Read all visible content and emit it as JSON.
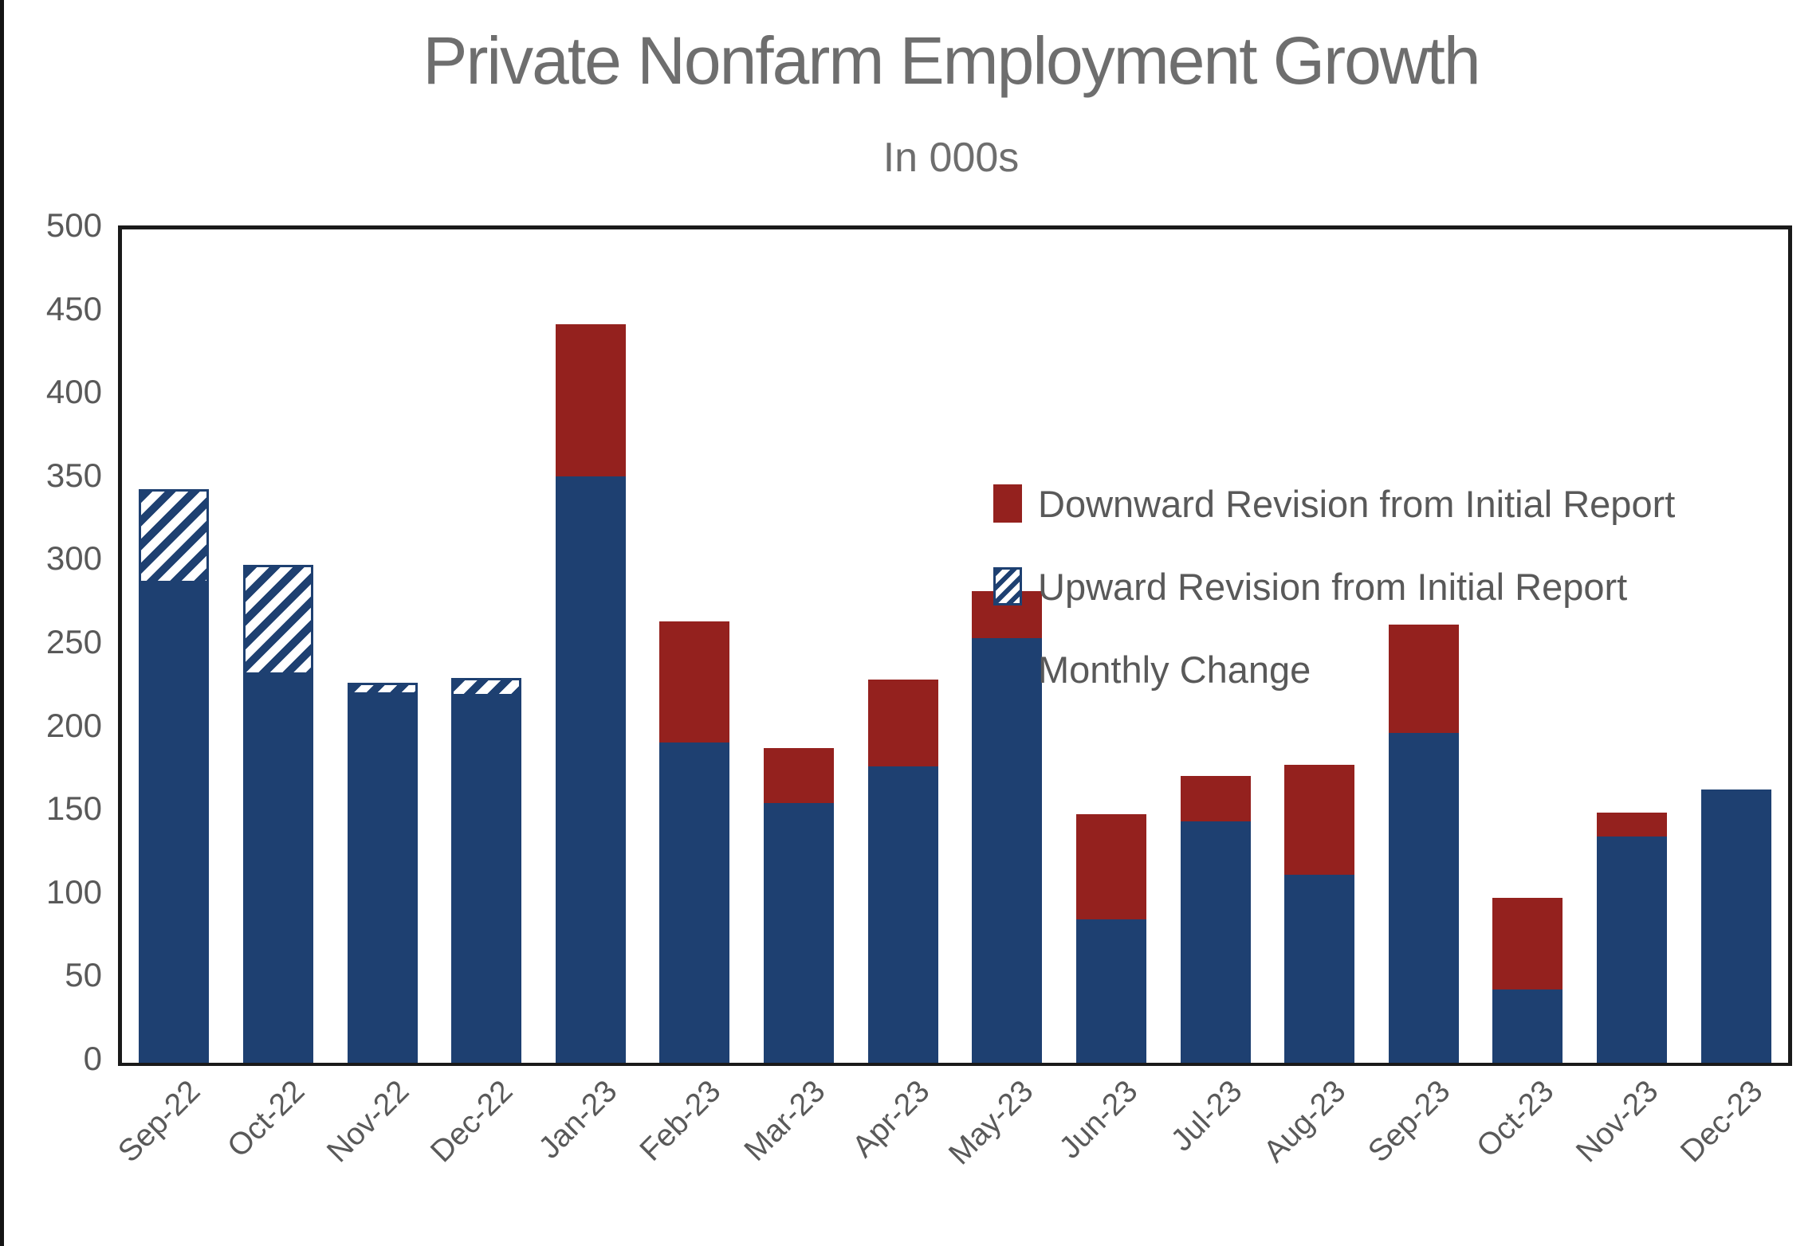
{
  "page": {
    "title": "Private Nonfarm Employment Growth",
    "subtitle": "In 000s"
  },
  "colors": {
    "bar_blue": "#1e4071",
    "bar_red": "#94211e",
    "hatch_blue": "#1e4071",
    "title_gray": "#6e6e6e",
    "label_gray": "#595959",
    "axis_black": "#1a1a1a"
  },
  "legend": [
    {
      "key": "downward",
      "swatch": "swatch-red",
      "label": "Downward Revision from Initial Report"
    },
    {
      "key": "upward",
      "swatch": "swatch-hatch",
      "label": "Upward Revision from Initial Report"
    },
    {
      "key": "monthly",
      "swatch": "swatch-blue",
      "label": "Monthly Change"
    }
  ],
  "chart_data": {
    "type": "bar",
    "stacked": true,
    "grid": false,
    "legend_position": "inside-top-right",
    "title": "Private Nonfarm Employment Growth",
    "subtitle": "In 000s",
    "xlabel": "",
    "ylabel": "",
    "ylim": [
      0,
      500
    ],
    "ytick_step": 50,
    "yticks": [
      0,
      50,
      100,
      150,
      200,
      250,
      300,
      350,
      400,
      450,
      500
    ],
    "categories": [
      "Sep-22",
      "Oct-22",
      "Nov-22",
      "Dec-22",
      "Jan-23",
      "Feb-23",
      "Mar-23",
      "Apr-23",
      "May-23",
      "Jun-23",
      "Jul-23",
      "Aug-23",
      "Sep-23",
      "Oct-23",
      "Nov-23",
      "Dec-23"
    ],
    "series": [
      {
        "name": "Monthly Change",
        "style": "solid-blue",
        "values": [
          288,
          233,
          221,
          220,
          352,
          192,
          156,
          178,
          255,
          86,
          145,
          113,
          198,
          44,
          136,
          164
        ]
      },
      {
        "name": "Upward Revision from Initial Report",
        "style": "hatch",
        "values": [
          56,
          66,
          7,
          11,
          0,
          0,
          0,
          0,
          0,
          0,
          0,
          0,
          0,
          0,
          0,
          0
        ]
      },
      {
        "name": "Downward Revision from Initial Report",
        "style": "solid-red",
        "values": [
          0,
          0,
          0,
          0,
          91,
          73,
          33,
          52,
          28,
          63,
          27,
          66,
          65,
          55,
          14,
          0
        ]
      }
    ],
    "initial_report_totals": [
      288,
      233,
      221,
      220,
      443,
      265,
      189,
      230,
      283,
      149,
      172,
      179,
      263,
      99,
      150,
      164
    ],
    "current_estimates": [
      344,
      299,
      228,
      231,
      352,
      192,
      156,
      178,
      255,
      86,
      145,
      113,
      198,
      44,
      136,
      164
    ]
  }
}
